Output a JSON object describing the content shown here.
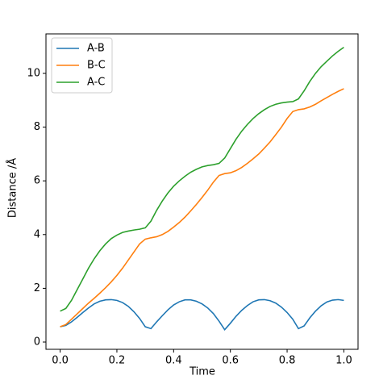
{
  "chart_data": {
    "type": "line",
    "xlabel": "Time",
    "ylabel": "Distance /Å",
    "x": [
      0,
      0.02,
      0.04,
      0.06,
      0.08,
      0.1,
      0.12,
      0.14,
      0.16,
      0.18,
      0.2,
      0.22,
      0.24,
      0.26,
      0.28,
      0.3,
      0.32,
      0.34,
      0.36,
      0.38,
      0.4,
      0.42,
      0.44,
      0.46,
      0.48,
      0.5,
      0.52,
      0.54,
      0.56,
      0.58,
      0.6,
      0.62,
      0.64,
      0.66,
      0.68,
      0.7,
      0.72,
      0.74,
      0.76,
      0.78,
      0.8,
      0.82,
      0.84,
      0.86,
      0.88,
      0.9,
      0.92,
      0.94,
      0.96,
      0.98,
      1
    ],
    "series": [
      {
        "name": "A-B",
        "color": "#1f77b4",
        "values": [
          0.57,
          0.62,
          0.75,
          0.92,
          1.1,
          1.27,
          1.42,
          1.52,
          1.57,
          1.58,
          1.55,
          1.47,
          1.33,
          1.13,
          0.88,
          0.57,
          0.5,
          0.75,
          0.98,
          1.2,
          1.38,
          1.5,
          1.57,
          1.57,
          1.52,
          1.42,
          1.27,
          1.06,
          0.78,
          0.46,
          0.7,
          0.96,
          1.18,
          1.36,
          1.5,
          1.57,
          1.58,
          1.54,
          1.45,
          1.3,
          1.1,
          0.85,
          0.5,
          0.6,
          0.9,
          1.15,
          1.35,
          1.49,
          1.56,
          1.58,
          1.55
        ]
      },
      {
        "name": "B-C",
        "color": "#ff7f0e",
        "values": [
          0.57,
          0.65,
          0.85,
          1.05,
          1.25,
          1.45,
          1.63,
          1.82,
          2.02,
          2.24,
          2.48,
          2.75,
          3.05,
          3.35,
          3.65,
          3.83,
          3.88,
          3.92,
          4.0,
          4.12,
          4.28,
          4.45,
          4.65,
          4.88,
          5.12,
          5.38,
          5.65,
          5.95,
          6.2,
          6.27,
          6.3,
          6.38,
          6.5,
          6.65,
          6.82,
          7.0,
          7.22,
          7.45,
          7.72,
          8.0,
          8.32,
          8.58,
          8.65,
          8.68,
          8.75,
          8.85,
          8.98,
          9.1,
          9.22,
          9.33,
          9.43
        ]
      },
      {
        "name": "A-C",
        "color": "#2ca02c",
        "values": [
          1.15,
          1.25,
          1.55,
          1.95,
          2.35,
          2.75,
          3.1,
          3.4,
          3.65,
          3.85,
          3.98,
          4.08,
          4.13,
          4.17,
          4.2,
          4.25,
          4.5,
          4.9,
          5.25,
          5.55,
          5.8,
          6.0,
          6.17,
          6.32,
          6.43,
          6.52,
          6.57,
          6.6,
          6.65,
          6.85,
          7.2,
          7.55,
          7.85,
          8.1,
          8.32,
          8.5,
          8.65,
          8.77,
          8.85,
          8.9,
          8.93,
          8.95,
          9.05,
          9.35,
          9.7,
          10.0,
          10.25,
          10.45,
          10.65,
          10.82,
          10.97
        ]
      }
    ],
    "xlim": [
      -0.05,
      1.05
    ],
    "xticks": [
      {
        "value": 0,
        "label": "0.0"
      },
      {
        "value": 0.2,
        "label": "0.2"
      },
      {
        "value": 0.4,
        "label": "0.4"
      },
      {
        "value": 0.6,
        "label": "0.6"
      },
      {
        "value": 0.8,
        "label": "0.8"
      },
      {
        "value": 1,
        "label": "1.0"
      }
    ],
    "ylim": [
      -0.27,
      11.47
    ],
    "yticks": [
      0,
      2,
      4,
      6,
      8,
      10
    ],
    "legend": "upper left",
    "grid": false
  }
}
